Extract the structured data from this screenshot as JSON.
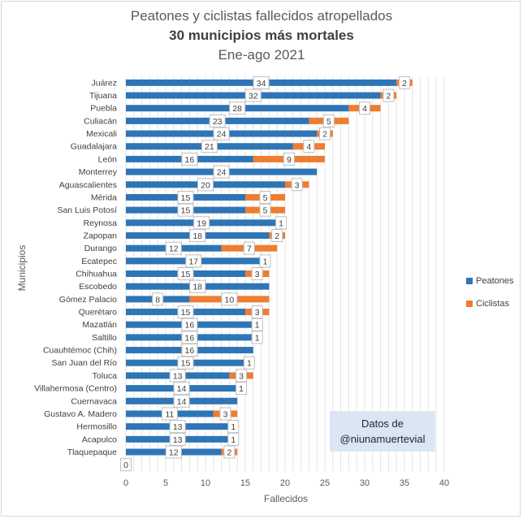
{
  "chart_data": {
    "type": "bar",
    "orientation": "horizontal",
    "stacked": true,
    "title": "Peatones y ciclistas fallecidos atropellados",
    "subtitle": "30 municipios más mortales",
    "period": "Ene-ago 2021",
    "xlabel": "Fallecidos",
    "ylabel": "Municipios",
    "xlim": [
      0,
      40
    ],
    "xticks": [
      0,
      5,
      10,
      15,
      20,
      25,
      30,
      35,
      40
    ],
    "grid": "vertical",
    "legend_position": "right",
    "categories": [
      "Juárez",
      "Tijuana",
      "Puebla",
      "Culiacán",
      "Mexicali",
      "Guadalajara",
      "León",
      "Monterrey",
      "Aguascalientes",
      "Mérida",
      "San Luis Potosí",
      "Reynosa",
      "Zapopan",
      "Durango",
      "Ecatepec",
      "Chihuahua",
      "Escobedo",
      "Gómez Palacio",
      "Querétaro",
      "Mazatlán",
      "Saltillo",
      "Cuauhtémoc (Chih)",
      "San Juan del Río",
      "Toluca",
      "Villahermosa (Centro)",
      "Cuernavaca",
      "Gustavo A. Madero",
      "Hermosillo",
      "Acapulco",
      "Tlaquepaque",
      ""
    ],
    "series": [
      {
        "name": "Peatones",
        "color": "#2e75b6",
        "values": [
          34,
          32,
          28,
          23,
          24,
          21,
          16,
          24,
          20,
          15,
          15,
          19,
          18,
          12,
          17,
          15,
          18,
          8,
          15,
          16,
          16,
          16,
          15,
          13,
          14,
          14,
          11,
          13,
          13,
          12,
          0
        ]
      },
      {
        "name": "Ciclistas",
        "color": "#ed7d31",
        "values": [
          2,
          2,
          4,
          5,
          2,
          4,
          9,
          0,
          3,
          5,
          5,
          1,
          2,
          7,
          1,
          3,
          0,
          10,
          3,
          1,
          1,
          0,
          1,
          3,
          1,
          0,
          3,
          1,
          1,
          2,
          0
        ]
      }
    ],
    "data_labels": {
      "peatones": [
        "34",
        "32",
        "28",
        "23",
        "24",
        "21",
        "16",
        "24",
        "20",
        "15",
        "15",
        "19",
        "18",
        "12",
        "17",
        "15",
        "18",
        "8",
        "15",
        "16",
        "16",
        "16",
        "15",
        "13",
        "14",
        "14",
        "11",
        "13",
        "13",
        "12",
        "0"
      ],
      "ciclistas": [
        "2",
        "2",
        "4",
        "5",
        "2",
        "4",
        "9",
        "",
        "3",
        "5",
        "5",
        "1",
        "2",
        "7",
        "1",
        "3",
        "",
        "10",
        "3",
        "1",
        "1",
        "",
        "1",
        "3",
        "1",
        "",
        "3",
        "1",
        "1",
        "2",
        ""
      ]
    }
  },
  "credit": {
    "line1": "Datos de",
    "line2": "@niunamuertevial"
  }
}
